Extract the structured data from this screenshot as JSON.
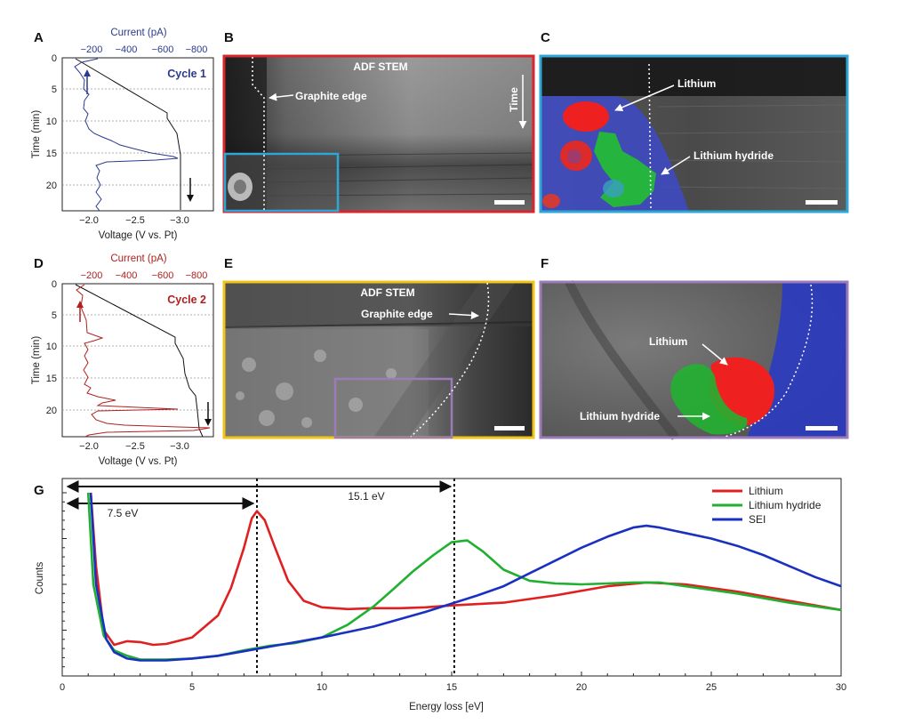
{
  "panel_labels": {
    "A": "A",
    "B": "B",
    "C": "C",
    "D": "D",
    "E": "E",
    "F": "F",
    "G": "G"
  },
  "colors": {
    "cycle1": "#2a3a8f",
    "cycle2": "#b02020",
    "lithium": "#e02020",
    "hydride": "#20b030",
    "sei": "#1a30c0",
    "panelB": "#d9262e",
    "panelC": "#2ea7d6",
    "panelE": "#f0c419",
    "panelF": "#9b7bb8"
  },
  "panel_a": {
    "cycle_label": "Cycle 1",
    "top_axis_label": "Current (pA)",
    "bottom_axis_label": "Voltage (V vs. Pt)",
    "y_axis_label": "Time (min)",
    "top_ticks": [
      "−200",
      "−400",
      "−600",
      "−800"
    ],
    "bottom_ticks": [
      "−2.0",
      "−2.5",
      "−3.0"
    ],
    "y_ticks": [
      "0",
      "5",
      "10",
      "15",
      "20"
    ]
  },
  "panel_d": {
    "cycle_label": "Cycle 2",
    "top_axis_label": "Current (pA)",
    "bottom_axis_label": "Voltage (V vs. Pt)",
    "y_axis_label": "Time (min)",
    "top_ticks": [
      "−200",
      "−400",
      "−600",
      "−800"
    ],
    "bottom_ticks": [
      "−2.0",
      "−2.5",
      "−3.0"
    ],
    "y_ticks": [
      "0",
      "5",
      "10",
      "15",
      "20"
    ]
  },
  "panel_b": {
    "title": "ADF STEM",
    "edge_label": "Graphite edge",
    "time_label": "Time"
  },
  "panel_c": {
    "lithium_label": "Lithium",
    "hydride_label": "Lithium hydride"
  },
  "panel_e": {
    "title": "ADF STEM",
    "edge_label": "Graphite edge"
  },
  "panel_f": {
    "lithium_label": "Lithium",
    "hydride_label": "Lithium hydride"
  },
  "chart_data": {
    "type": "line",
    "xlabel": "Energy loss [eV]",
    "ylabel": "Counts",
    "xlim": [
      0,
      30
    ],
    "ylim": [
      0,
      100
    ],
    "x_ticks": [
      "0",
      "5",
      "10",
      "15",
      "20",
      "25",
      "30"
    ],
    "grid": false,
    "legend_position": "top-right",
    "annotations": [
      {
        "label": "7.5 eV",
        "x": 7.5
      },
      {
        "label": "15.1 eV",
        "x": 15.1
      }
    ],
    "series": [
      {
        "name": "Lithium",
        "color": "#e02020",
        "points": [
          [
            1.1,
            100
          ],
          [
            1.3,
            60
          ],
          [
            1.6,
            25
          ],
          [
            2,
            17
          ],
          [
            2.5,
            19
          ],
          [
            3,
            18.5
          ],
          [
            3.5,
            17
          ],
          [
            4,
            17.5
          ],
          [
            5,
            21
          ],
          [
            6,
            33
          ],
          [
            6.5,
            48
          ],
          [
            7,
            70
          ],
          [
            7.3,
            86
          ],
          [
            7.5,
            90
          ],
          [
            7.8,
            85
          ],
          [
            8.2,
            70
          ],
          [
            8.7,
            52
          ],
          [
            9.3,
            41
          ],
          [
            10,
            37.5
          ],
          [
            11,
            36.5
          ],
          [
            12,
            37
          ],
          [
            13,
            37
          ],
          [
            14,
            37.5
          ],
          [
            15,
            38.5
          ],
          [
            17,
            40
          ],
          [
            19,
            44
          ],
          [
            21,
            49
          ],
          [
            22.5,
            51
          ],
          [
            24,
            50
          ],
          [
            26,
            46
          ],
          [
            28,
            41
          ],
          [
            30,
            36
          ]
        ]
      },
      {
        "name": "Lithium hydride",
        "color": "#20b030",
        "points": [
          [
            1,
            100
          ],
          [
            1.2,
            50
          ],
          [
            1.6,
            22
          ],
          [
            2,
            14
          ],
          [
            2.5,
            11
          ],
          [
            3,
            9
          ],
          [
            4,
            9
          ],
          [
            5,
            9.5
          ],
          [
            6,
            11
          ],
          [
            7,
            14
          ],
          [
            8,
            16.5
          ],
          [
            9,
            18
          ],
          [
            10,
            21
          ],
          [
            11,
            28
          ],
          [
            12,
            38
          ],
          [
            12.8,
            48
          ],
          [
            13.5,
            57
          ],
          [
            14.3,
            66
          ],
          [
            15,
            73
          ],
          [
            15.6,
            74
          ],
          [
            16.2,
            68
          ],
          [
            17,
            58
          ],
          [
            18,
            52
          ],
          [
            19,
            50.5
          ],
          [
            20,
            50
          ],
          [
            21,
            50.5
          ],
          [
            22,
            51
          ],
          [
            23,
            51
          ],
          [
            24,
            49
          ],
          [
            26,
            45
          ],
          [
            28,
            40
          ],
          [
            30,
            36
          ]
        ]
      },
      {
        "name": "SEI",
        "color": "#1a30c0",
        "points": [
          [
            1.1,
            100
          ],
          [
            1.3,
            50
          ],
          [
            1.7,
            20
          ],
          [
            2,
            13
          ],
          [
            2.5,
            9.5
          ],
          [
            3,
            8.5
          ],
          [
            4,
            8.5
          ],
          [
            5,
            9.5
          ],
          [
            6,
            11
          ],
          [
            7,
            13.5
          ],
          [
            8,
            16
          ],
          [
            9,
            18.5
          ],
          [
            10,
            21
          ],
          [
            11,
            24
          ],
          [
            12,
            27
          ],
          [
            13,
            31
          ],
          [
            14,
            35
          ],
          [
            15,
            39.5
          ],
          [
            16,
            44
          ],
          [
            17,
            49
          ],
          [
            18,
            56
          ],
          [
            19,
            63
          ],
          [
            20,
            70
          ],
          [
            21,
            76
          ],
          [
            22,
            81
          ],
          [
            22.5,
            82
          ],
          [
            23,
            81
          ],
          [
            24,
            78
          ],
          [
            25,
            75
          ],
          [
            26,
            71
          ],
          [
            27,
            66
          ],
          [
            28,
            60
          ],
          [
            29,
            54
          ],
          [
            30,
            49
          ]
        ]
      }
    ]
  }
}
